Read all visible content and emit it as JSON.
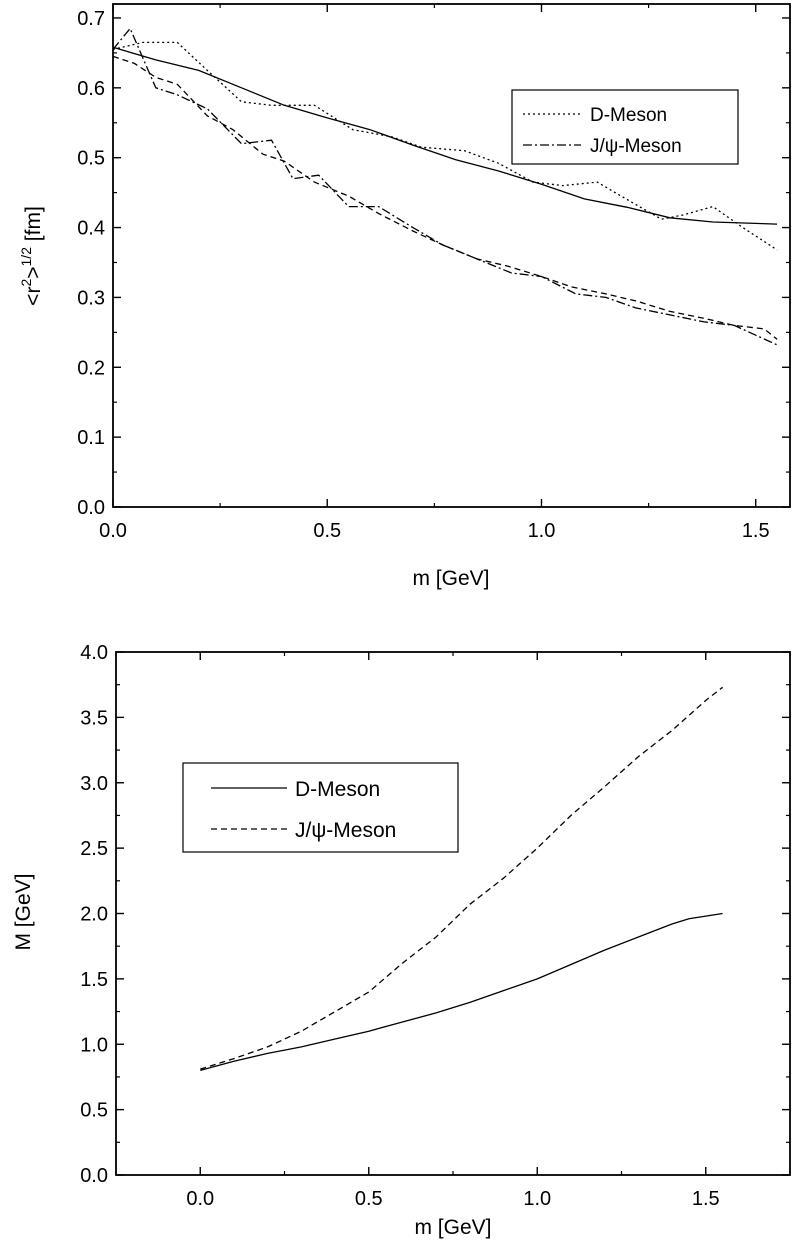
{
  "chart_data": [
    {
      "type": "line",
      "xlabel": "m [GeV]",
      "ylabel_parts": {
        "lt": "<r",
        "sup1": "2",
        "gt": ">",
        "sup2": "1/2",
        "unit": " [fm]"
      },
      "xlim": [
        0,
        1.58
      ],
      "ylim": [
        0,
        0.72
      ],
      "x_ticks": [
        "0.0",
        "0.5",
        "1.0",
        "1.5"
      ],
      "y_ticks": [
        "0.0",
        "0.1",
        "0.2",
        "0.3",
        "0.4",
        "0.5",
        "0.6",
        "0.7"
      ],
      "grid": false,
      "legend_position": "top-right",
      "legend": [
        {
          "label": "D-Meson",
          "style": "dotted"
        },
        {
          "label": "J/ψ-Meson",
          "style": "dashdot"
        }
      ],
      "series": [
        {
          "label": "D-Meson (fit)",
          "style": "solid",
          "x": [
            0,
            0.1,
            0.2,
            0.3,
            0.4,
            0.5,
            0.6,
            0.7,
            0.8,
            0.9,
            1.0,
            1.1,
            1.2,
            1.3,
            1.4,
            1.55
          ],
          "y": [
            0.658,
            0.64,
            0.625,
            0.6,
            0.575,
            0.557,
            0.54,
            0.518,
            0.497,
            0.481,
            0.462,
            0.441,
            0.429,
            0.414,
            0.408,
            0.405
          ]
        },
        {
          "label": "D-Meson",
          "style": "dotted",
          "x": [
            0,
            0.07,
            0.15,
            0.22,
            0.3,
            0.37,
            0.47,
            0.56,
            0.65,
            0.72,
            0.82,
            0.9,
            0.98,
            1.05,
            1.13,
            1.2,
            1.28,
            1.33,
            1.4,
            1.47,
            1.55
          ],
          "y": [
            0.655,
            0.665,
            0.665,
            0.625,
            0.58,
            0.575,
            0.575,
            0.54,
            0.53,
            0.515,
            0.51,
            0.492,
            0.465,
            0.46,
            0.465,
            0.44,
            0.412,
            0.418,
            0.43,
            0.4,
            0.368
          ]
        },
        {
          "label": "J/ψ-Meson",
          "style": "dashdot",
          "x": [
            0,
            0.04,
            0.1,
            0.15,
            0.22,
            0.3,
            0.37,
            0.42,
            0.48,
            0.55,
            0.62,
            0.7,
            0.77,
            0.85,
            0.93,
            1.0,
            1.08,
            1.15,
            1.22,
            1.3,
            1.38,
            1.45,
            1.55
          ],
          "y": [
            0.655,
            0.685,
            0.6,
            0.59,
            0.57,
            0.52,
            0.525,
            0.47,
            0.475,
            0.43,
            0.43,
            0.4,
            0.375,
            0.355,
            0.335,
            0.33,
            0.305,
            0.3,
            0.285,
            0.275,
            0.265,
            0.26,
            0.232
          ]
        },
        {
          "label": "J/ψ-Meson (dashed)",
          "style": "dashed",
          "x": [
            0,
            0.05,
            0.1,
            0.15,
            0.22,
            0.28,
            0.35,
            0.4,
            0.47,
            0.55,
            0.62,
            0.7,
            0.77,
            0.85,
            0.92,
            1.0,
            1.07,
            1.15,
            1.22,
            1.3,
            1.38,
            1.45,
            1.52,
            1.55
          ],
          "y": [
            0.645,
            0.635,
            0.615,
            0.605,
            0.56,
            0.54,
            0.505,
            0.495,
            0.465,
            0.445,
            0.42,
            0.395,
            0.375,
            0.355,
            0.345,
            0.33,
            0.315,
            0.305,
            0.295,
            0.28,
            0.27,
            0.26,
            0.255,
            0.24
          ]
        }
      ]
    },
    {
      "type": "line",
      "xlabel": "m [GeV]",
      "ylabel": "M [GeV]",
      "xlim": [
        -0.25,
        1.75
      ],
      "ylim": [
        0,
        4.0
      ],
      "x_ticks": [
        "0.0",
        "0.5",
        "1.0",
        "1.5"
      ],
      "y_ticks": [
        "0.0",
        "0.5",
        "1.0",
        "1.5",
        "2.0",
        "2.5",
        "3.0",
        "3.5",
        "4.0"
      ],
      "grid": false,
      "legend_position": "upper-left",
      "legend": [
        {
          "label": "D-Meson",
          "style": "solid"
        },
        {
          "label": "J/ψ-Meson",
          "style": "dashed"
        }
      ],
      "series": [
        {
          "label": "D-Meson",
          "style": "solid",
          "x": [
            0,
            0.1,
            0.2,
            0.3,
            0.4,
            0.5,
            0.6,
            0.7,
            0.8,
            0.9,
            1.0,
            1.1,
            1.2,
            1.3,
            1.4,
            1.45,
            1.55
          ],
          "y": [
            0.8,
            0.87,
            0.93,
            0.98,
            1.04,
            1.1,
            1.17,
            1.24,
            1.32,
            1.41,
            1.5,
            1.61,
            1.72,
            1.82,
            1.92,
            1.96,
            2.0
          ]
        },
        {
          "label": "J/ψ-Meson",
          "style": "dashed",
          "x": [
            0,
            0.1,
            0.2,
            0.3,
            0.4,
            0.5,
            0.6,
            0.7,
            0.8,
            0.9,
            1.0,
            1.1,
            1.2,
            1.3,
            1.4,
            1.5,
            1.55
          ],
          "y": [
            0.81,
            0.89,
            0.98,
            1.1,
            1.25,
            1.4,
            1.62,
            1.82,
            2.07,
            2.27,
            2.5,
            2.75,
            2.97,
            3.2,
            3.4,
            3.63,
            3.73
          ]
        }
      ]
    }
  ]
}
